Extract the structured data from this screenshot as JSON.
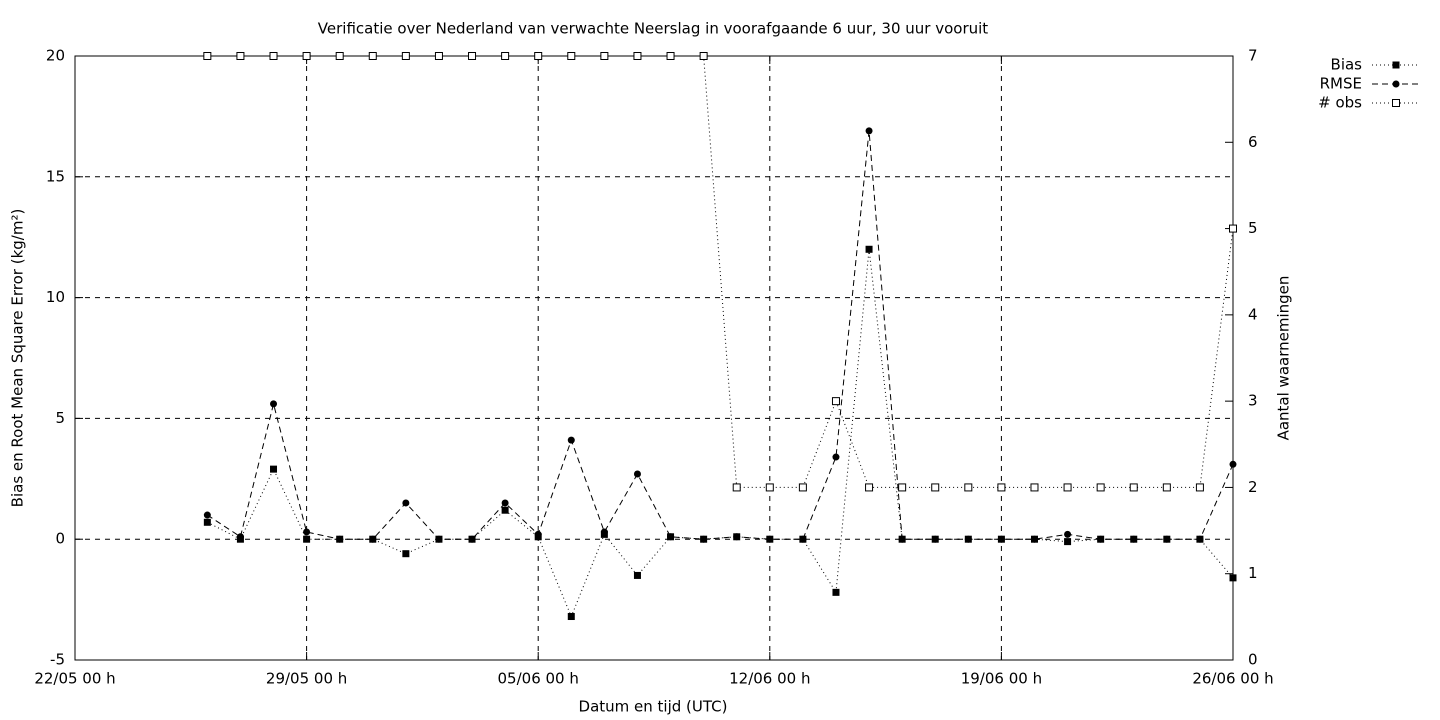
{
  "chart_data": {
    "type": "line",
    "title": "Verificatie over Nederland van verwachte Neerslag in voorafgaande 6 uur, 30 uur vooruit",
    "x_label": "Datum en tijd (UTC)",
    "y_label": "Bias en Root Mean Square Error (kg/m²)",
    "y2_label": "Aantal waarnemingen",
    "x": [
      "26/05 00 h",
      "27/05 00 h",
      "28/05 00 h",
      "29/05 00 h",
      "30/05 00 h",
      "31/05 00 h",
      "01/06 00 h",
      "02/06 00 h",
      "03/06 00 h",
      "04/06 00 h",
      "05/06 00 h",
      "06/06 00 h",
      "07/06 00 h",
      "08/06 00 h",
      "09/06 00 h",
      "10/06 00 h",
      "11/06 00 h",
      "12/06 00 h",
      "13/06 00 h",
      "14/06 00 h",
      "15/06 00 h",
      "16/06 00 h",
      "17/06 00 h",
      "18/06 00 h",
      "19/06 00 h",
      "20/06 00 h",
      "21/06 00 h",
      "22/06 00 h",
      "23/06 00 h",
      "24/06 00 h",
      "25/06 00 h",
      "26/06 00 h"
    ],
    "xlim": [
      "22/05 00 h",
      "26/06 00 h"
    ],
    "xticks": [
      "22/05 00 h",
      "29/05 00 h",
      "05/06 00 h",
      "12/06 00 h",
      "19/06 00 h",
      "26/06 00 h"
    ],
    "ylim": [
      -5,
      20
    ],
    "yticks": [
      -5,
      0,
      5,
      10,
      15,
      20
    ],
    "y2lim": [
      0,
      7
    ],
    "y2ticks": [
      0,
      1,
      2,
      3,
      4,
      5,
      6,
      7
    ],
    "grid": true,
    "legend_position": "outside-top-right",
    "series": [
      {
        "name": "Bias",
        "color": "#000000",
        "dash": "dotted",
        "marker": "filled-square",
        "values": [
          0.7,
          0,
          2.9,
          0,
          0,
          0,
          -0.6,
          0,
          0,
          1.2,
          0.1,
          -3.2,
          0.2,
          -1.5,
          0.1,
          0,
          0.1,
          0,
          0,
          -2.2,
          12.0,
          0,
          0,
          0,
          0,
          0,
          -0.1,
          0,
          0,
          0,
          0,
          -1.6
        ]
      },
      {
        "name": "RMSE",
        "color": "#000000",
        "dash": "dashed",
        "marker": "filled-circle",
        "values": [
          1.0,
          0.1,
          5.6,
          0.3,
          0,
          0,
          1.5,
          0,
          0,
          1.5,
          0.2,
          4.1,
          0.3,
          2.7,
          0.1,
          0,
          0.1,
          0,
          0,
          3.4,
          16.9,
          0,
          0,
          0,
          0,
          0,
          0.2,
          0,
          0,
          0,
          0,
          3.1
        ]
      },
      {
        "name": "# obs",
        "color": "#000000",
        "dash": "dotted",
        "marker": "open-square",
        "axis": "y2",
        "values": [
          7,
          7,
          7,
          7,
          7,
          7,
          7,
          7,
          7,
          7,
          7,
          7,
          7,
          7,
          7,
          7,
          2,
          2,
          2,
          3,
          2,
          2,
          2,
          2,
          2,
          2,
          2,
          2,
          2,
          2,
          2,
          5
        ]
      }
    ]
  }
}
